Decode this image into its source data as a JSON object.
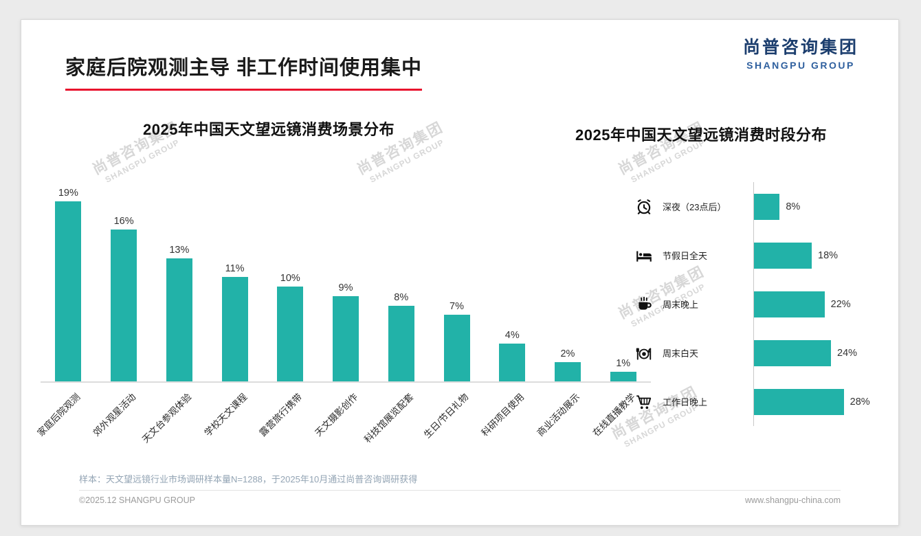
{
  "header": {
    "title": "家庭后院观测主导 非工作时间使用集中"
  },
  "logo": {
    "cn": "尚普咨询集团",
    "en": "SHANGPU GROUP"
  },
  "watermark": {
    "cn": "尚普咨询集团",
    "en": "SHANGPU GROUP"
  },
  "colors": {
    "bar_teal": "#22b2a8",
    "accent_red": "#e8112d",
    "logo_navy": "#1c3e6e",
    "logo_blue": "#2e5f9e"
  },
  "chart_data": [
    {
      "type": "bar",
      "orientation": "vertical",
      "title": "2025年中国天文望远镜消费场景分布",
      "categories": [
        "家庭后院观测",
        "郊外观星活动",
        "天文台参观体验",
        "学校天文课程",
        "露营旅行携带",
        "天文摄影创作",
        "科技馆展览配套",
        "生日/节日礼物",
        "科研项目使用",
        "商业活动展示",
        "在线直播教学"
      ],
      "values": [
        19,
        16,
        13,
        11,
        10,
        9,
        8,
        7,
        4,
        2,
        1
      ],
      "unit": "%",
      "ylim": [
        0,
        20
      ],
      "grid": false,
      "bar_color": "#22b2a8"
    },
    {
      "type": "bar",
      "orientation": "horizontal",
      "title": "2025年中国天文望远镜消费时段分布",
      "categories": [
        "深夜（23点后）",
        "节假日全天",
        "周末晚上",
        "周末白天",
        "工作日晚上"
      ],
      "values": [
        8,
        18,
        22,
        24,
        28
      ],
      "icons": [
        "alarm-clock-icon",
        "bed-icon",
        "coffee-icon",
        "dining-icon",
        "cart-icon"
      ],
      "unit": "%",
      "xlim": [
        0,
        30
      ],
      "grid": false,
      "bar_color": "#22b2a8"
    }
  ],
  "footer": {
    "note": "样本：天文望远镜行业市场调研样本量N=1288，于2025年10月通过尚普咨询调研获得",
    "copyright": "©2025.12 SHANGPU GROUP",
    "website": "www.shangpu-china.com"
  }
}
